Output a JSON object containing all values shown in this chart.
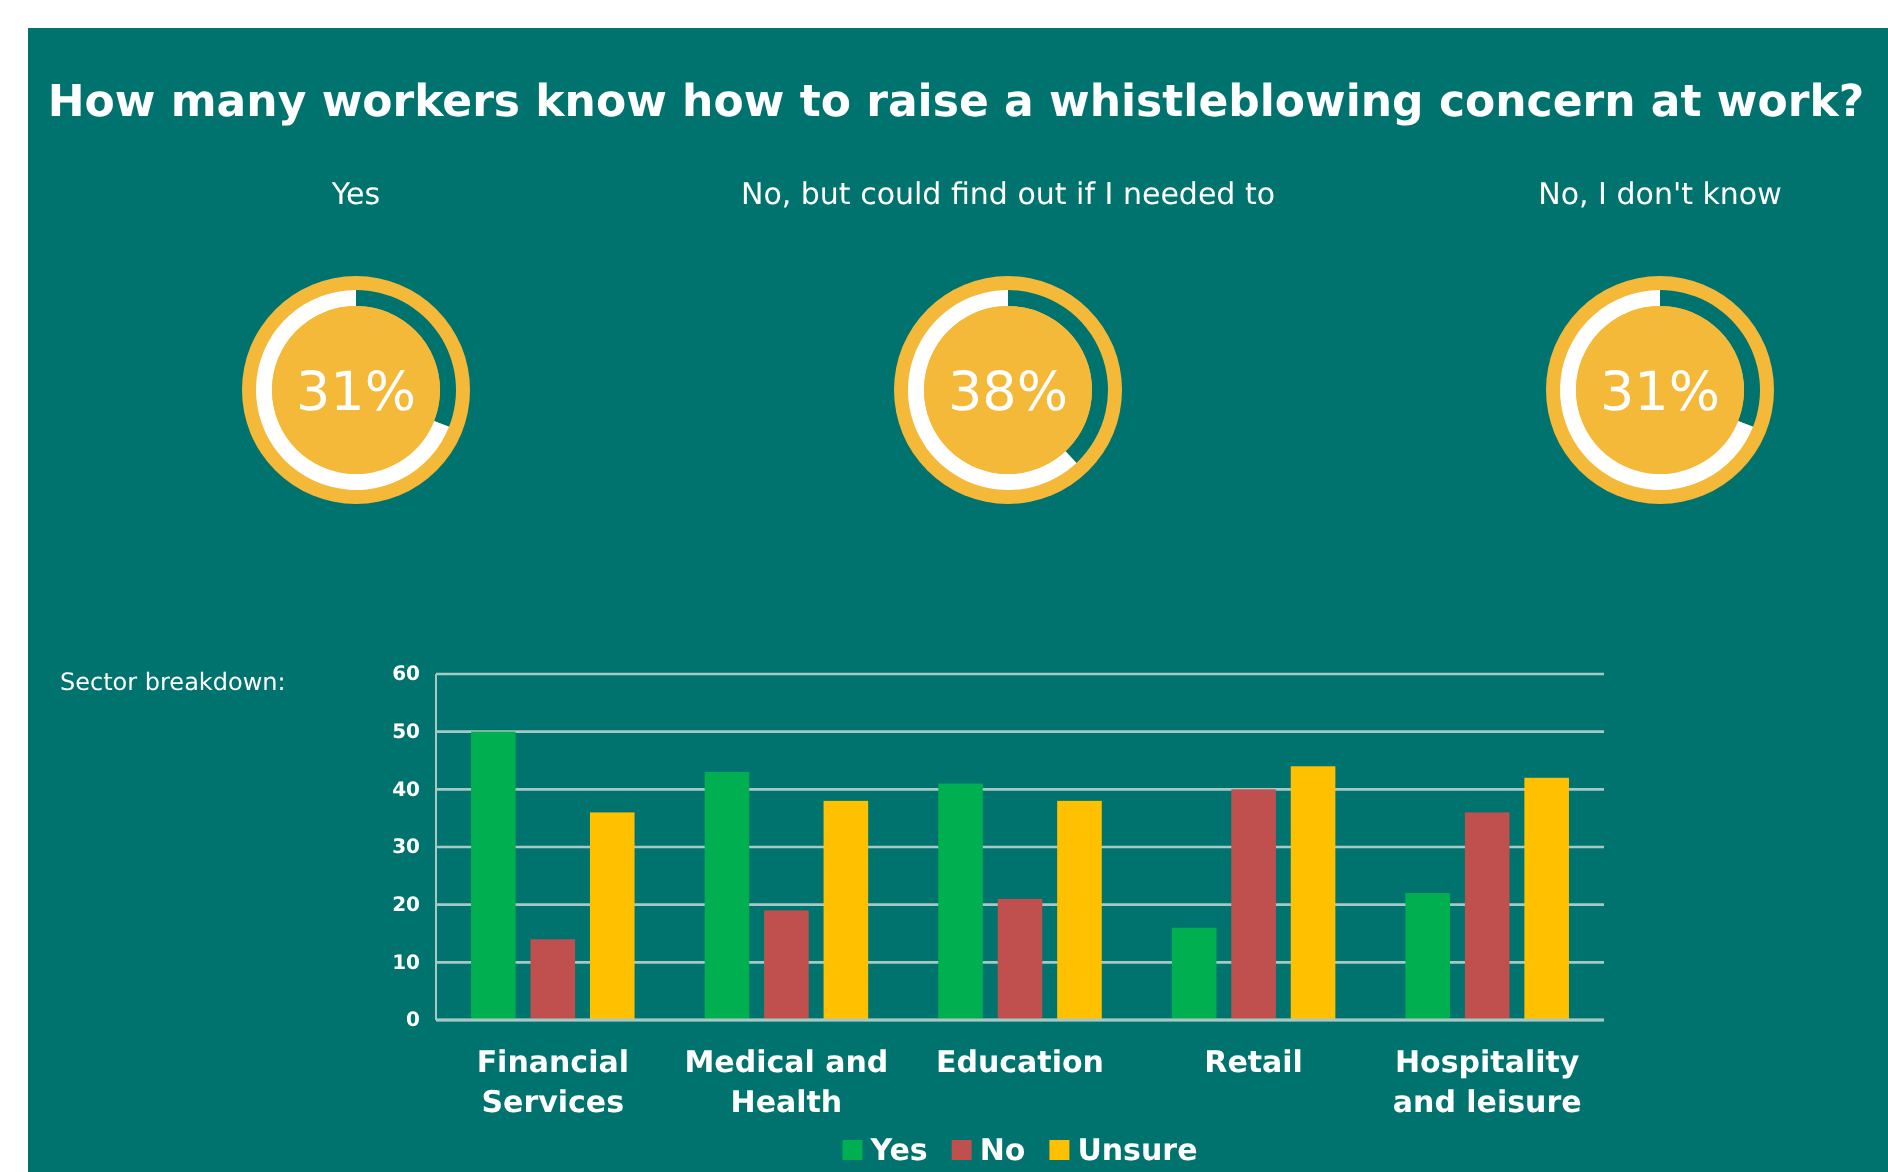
{
  "chart_data": [
    {
      "type": "donut",
      "title": "How many workers know how to raise a whistleblowing concern at work?",
      "subtitle": "Yes",
      "categories": [
        null,
        null
      ],
      "values": [
        31,
        69
      ],
      "colors": [
        "#00736e",
        "#ffffff"
      ],
      "annotations": [
        "31%"
      ]
    },
    {
      "type": "donut",
      "subtitle": "No, but could find out if I needed to",
      "categories": [
        null,
        null
      ],
      "values": [
        38,
        62
      ],
      "colors": [
        "#00736e",
        "#ffffff"
      ],
      "annotations": [
        "38%"
      ]
    },
    {
      "type": "donut",
      "subtitle": "No, I don't know",
      "categories": [
        null,
        null
      ],
      "values": [
        31,
        69
      ],
      "colors": [
        "#00736e",
        "#ffffff"
      ],
      "annotations": [
        "31%"
      ]
    },
    {
      "type": "bar",
      "title": "Sector breakdown:",
      "categories": [
        "Financial Services",
        "Medical and Health",
        "Education",
        "Retail",
        "Hospitality and leisure"
      ],
      "series": [
        {
          "name": "Yes",
          "color": "#00b050",
          "values": [
            50,
            43,
            41,
            16,
            22
          ]
        },
        {
          "name": "No",
          "color": "#c0504d",
          "values": [
            14,
            19,
            21,
            40,
            36
          ]
        },
        {
          "name": "Unsure",
          "color": "#ffc000",
          "values": [
            36,
            38,
            38,
            44,
            42
          ]
        }
      ],
      "ylim": [
        0,
        60
      ],
      "yticks": [
        0,
        10,
        20,
        30,
        40,
        50,
        60
      ],
      "grid": "y",
      "legend": "bottom"
    }
  ]
}
